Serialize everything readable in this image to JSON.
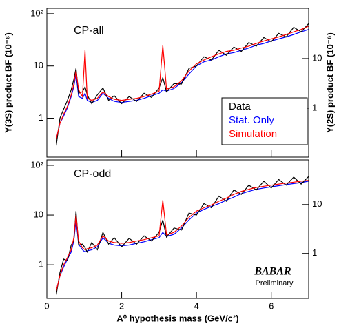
{
  "chart_data": [
    {
      "type": "line",
      "panel_label": "CP-all",
      "log_y": true,
      "ylabel": "Υ(3S) product BF (10⁻⁶)",
      "y2label": "Υ(2S) product BF (10⁻⁶)",
      "xlim": [
        0,
        7
      ],
      "ylim": [
        0.18,
        127
      ],
      "yticks": [
        1,
        10,
        {
          "value": 100,
          "label": "10²"
        }
      ],
      "y2lim": [
        0.103,
        103
      ],
      "y2ticks": [
        1,
        10
      ],
      "legend": "lower right",
      "x": [
        0.25,
        0.35,
        0.45,
        0.55,
        0.65,
        0.72,
        0.78,
        0.85,
        0.95,
        1.02,
        1.08,
        1.2,
        1.35,
        1.5,
        1.65,
        1.8,
        2.0,
        2.2,
        2.4,
        2.6,
        2.8,
        3.0,
        3.1,
        3.2,
        3.4,
        3.6,
        3.8,
        4.0,
        4.2,
        4.4,
        4.6,
        4.8,
        5.0,
        5.2,
        5.4,
        5.6,
        5.8,
        6.0,
        6.2,
        6.4,
        6.6,
        6.8,
        7.0
      ],
      "series": [
        {
          "name": "Data",
          "color": "#000000",
          "values": [
            0.3,
            1.0,
            1.5,
            2.2,
            3.5,
            5.5,
            9,
            3.0,
            3.2,
            4,
            2.8,
            1.9,
            2.8,
            3.8,
            2.2,
            2.7,
            1.9,
            2.6,
            2.1,
            3.0,
            2.5,
            3.8,
            6,
            3.2,
            4.6,
            4.5,
            9,
            10,
            15,
            13,
            20,
            16,
            23,
            19,
            28,
            24,
            35,
            29,
            42,
            36,
            55,
            45,
            65
          ]
        },
        {
          "name": "Stat. Only",
          "color": "#0000ff",
          "values": [
            0.4,
            0.8,
            1.1,
            1.6,
            2.6,
            4,
            7,
            2.6,
            2.4,
            3,
            2.2,
            2.0,
            2.2,
            3.0,
            2.4,
            2.1,
            2.0,
            2.1,
            2.2,
            2.4,
            2.7,
            3.0,
            3.5,
            3.3,
            3.7,
            4.8,
            7,
            10,
            12,
            13,
            15,
            17,
            18,
            20,
            22,
            25,
            27,
            30,
            33,
            36,
            40,
            45,
            50
          ]
        },
        {
          "name": "Simulation",
          "color": "#ff0000",
          "values": [
            0.4,
            0.8,
            1.2,
            1.7,
            2.8,
            4.5,
            8,
            3.5,
            2.6,
            20,
            2.4,
            2.2,
            2.4,
            3.2,
            2.6,
            2.3,
            2.2,
            2.3,
            2.4,
            2.6,
            2.9,
            3.3,
            25,
            3.6,
            4.0,
            5.2,
            8,
            11,
            13,
            15,
            17,
            19,
            20,
            22,
            24,
            27,
            30,
            33,
            36,
            40,
            45,
            50,
            58
          ]
        }
      ]
    },
    {
      "type": "line",
      "panel_label": "CP-odd",
      "log_y": true,
      "xlabel": "A⁰ hypothesis mass (GeV/c²)",
      "xlim": [
        0,
        7
      ],
      "xticks": [
        0,
        2,
        4,
        6
      ],
      "ylim": [
        0.21,
        129
      ],
      "yticks": [
        1,
        10,
        {
          "value": 100,
          "label": "10²"
        }
      ],
      "y2lim": [
        0.12,
        82
      ],
      "y2ticks": [
        1,
        10
      ],
      "annotations": [
        "BABAR",
        "Preliminary"
      ],
      "x": [
        0.25,
        0.35,
        0.45,
        0.55,
        0.65,
        0.72,
        0.78,
        0.85,
        0.95,
        1.02,
        1.08,
        1.2,
        1.35,
        1.5,
        1.65,
        1.8,
        2.0,
        2.2,
        2.4,
        2.6,
        2.8,
        3.0,
        3.1,
        3.2,
        3.4,
        3.6,
        3.8,
        4.0,
        4.2,
        4.4,
        4.6,
        4.8,
        5.0,
        5.2,
        5.4,
        5.6,
        5.8,
        6.0,
        6.2,
        6.4,
        6.6,
        6.8,
        7.0
      ],
      "series": [
        {
          "color": "#000000",
          "values": [
            0.25,
            0.7,
            1.3,
            1.2,
            2.5,
            3.0,
            12,
            2.5,
            2.6,
            2.2,
            1.8,
            2.8,
            2.0,
            4.5,
            2.6,
            3.5,
            2.3,
            3.4,
            2.6,
            3.8,
            3.0,
            4.5,
            8,
            3.6,
            5.5,
            5.0,
            11,
            10,
            17,
            14,
            24,
            19,
            32,
            26,
            40,
            32,
            48,
            35,
            52,
            40,
            58,
            42,
            60
          ]
        },
        {
          "color": "#0000ff",
          "values": [
            0.3,
            0.6,
            0.9,
            1.3,
            1.8,
            3.0,
            8,
            2.6,
            2.0,
            1.8,
            1.9,
            2.0,
            2.3,
            3.5,
            2.7,
            2.5,
            2.4,
            2.5,
            2.7,
            2.9,
            3.2,
            3.5,
            4.5,
            3.7,
            4.1,
            5.5,
            8,
            11,
            13,
            15,
            17,
            20,
            23,
            27,
            30,
            33,
            35,
            37,
            39,
            41,
            43,
            45,
            48
          ]
        },
        {
          "color": "#ff0000",
          "values": [
            0.3,
            0.6,
            1.0,
            1.4,
            2.0,
            3.5,
            10,
            3.0,
            2.2,
            2.0,
            2.1,
            2.2,
            2.5,
            3.8,
            3.0,
            2.8,
            2.7,
            2.8,
            3.0,
            3.2,
            3.5,
            3.8,
            20,
            4.0,
            4.5,
            6,
            9,
            12,
            14,
            16,
            19,
            22,
            26,
            30,
            33,
            36,
            38,
            40,
            42,
            44,
            46,
            48,
            50
          ]
        }
      ]
    }
  ]
}
